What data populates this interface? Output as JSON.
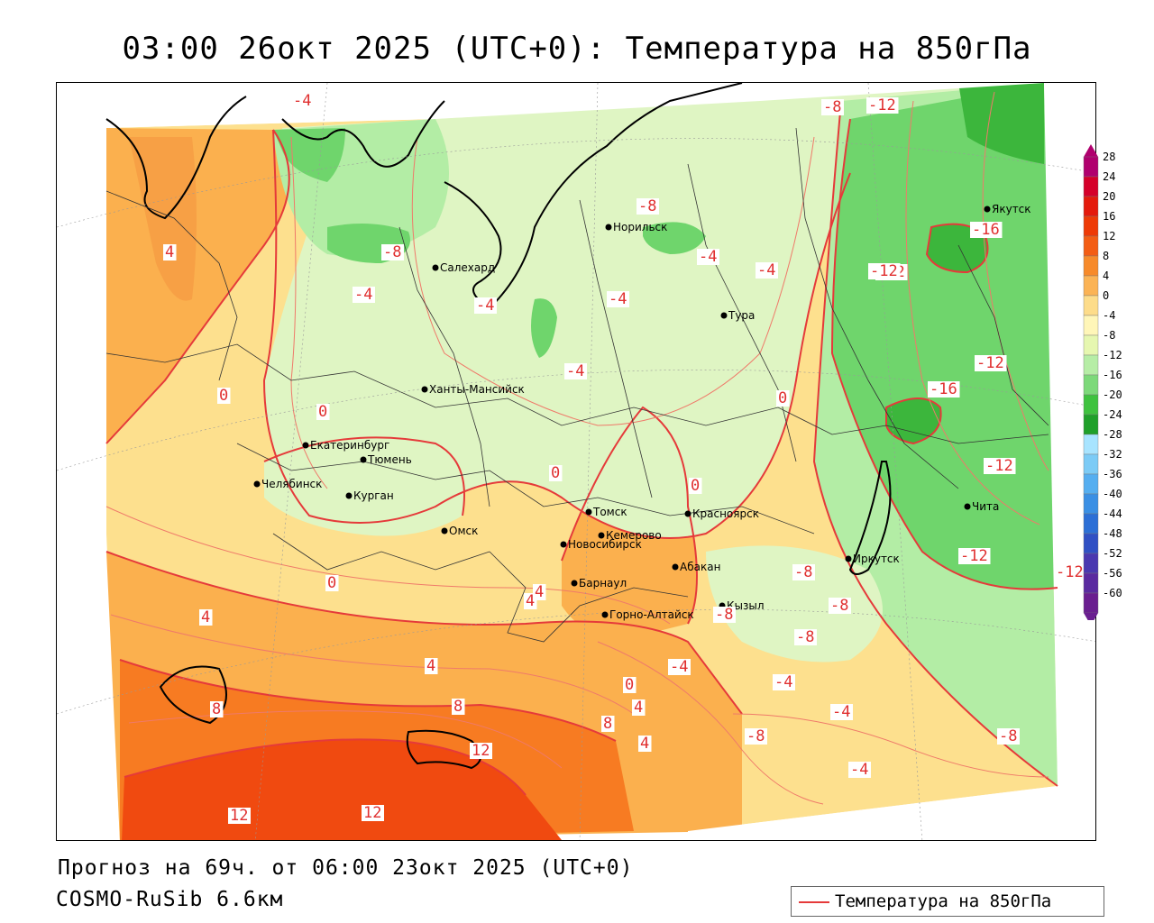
{
  "title": "03:00 26окт 2025 (UTC+0): Температура на 850гПа",
  "forecast_line": "Прогноз на 69ч. от 06:00 23окт 2025 (UTC+0)",
  "model_line": "COSMO-RuSib 6.6км",
  "legend": {
    "label": "Температура на 850гПа",
    "line_color": "#e53a3a"
  },
  "colorbar": {
    "ticks": [
      "28",
      "24",
      "20",
      "16",
      "12",
      "8",
      "4",
      "0",
      "-4",
      "-8",
      "-12",
      "-16",
      "-20",
      "-24",
      "-28",
      "-32",
      "-36",
      "-40",
      "-44",
      "-48",
      "-52",
      "-56",
      "-60"
    ],
    "colors": [
      "#b0006e",
      "#d5002a",
      "#e41a0c",
      "#ee3a06",
      "#f35d14",
      "#f78a2a",
      "#fbb355",
      "#fddc8a",
      "#fff6b8",
      "#e6f7b0",
      "#b6eda6",
      "#7dd97a",
      "#3fc23f",
      "#20a02a",
      "#a8e4ff",
      "#7ccbf6",
      "#55aef0",
      "#3a8fe4",
      "#2c6fd6",
      "#3050c4",
      "#4a38b0",
      "#5a2aa0",
      "#6a1e90"
    ]
  },
  "cities": [
    {
      "name": "Салехард"
    },
    {
      "name": "Норильск"
    },
    {
      "name": "Якутск"
    },
    {
      "name": "Тура"
    },
    {
      "name": "Ханты-Мансийск"
    },
    {
      "name": "Екатеринбург"
    },
    {
      "name": "Тюмень"
    },
    {
      "name": "Челябинск"
    },
    {
      "name": "Курган"
    },
    {
      "name": "Омск"
    },
    {
      "name": "Новосибирск"
    },
    {
      "name": "Томск"
    },
    {
      "name": "Кемерово"
    },
    {
      "name": "Красноярск"
    },
    {
      "name": "Барнаул"
    },
    {
      "name": "Абакан"
    },
    {
      "name": "Горно-Алтайск"
    },
    {
      "name": "Кызыл"
    },
    {
      "name": "Иркутск"
    },
    {
      "name": "Чита"
    }
  ],
  "isoline_labels": [
    "-16",
    "-12",
    "-12",
    "-8",
    "-8",
    "-8",
    "-4",
    "-4",
    "-4",
    "-4",
    "-4",
    "-4",
    "-4",
    "0",
    "0",
    "0",
    "0",
    "0",
    "0",
    "4",
    "4",
    "4",
    "4",
    "4",
    "8",
    "8",
    "8",
    "12",
    "12",
    "12",
    "-12",
    "-12",
    "-12",
    "-12",
    "-16",
    "-8",
    "-8",
    "-8",
    "-8",
    "-8",
    "-4",
    "-4",
    "-4",
    "-4",
    "0",
    "4",
    "4",
    "-8",
    "-12"
  ],
  "colors": {
    "warm_12": "#f04a10",
    "warm_8": "#f77b22",
    "warm_4": "#fbb04e",
    "warm_0": "#fde08e",
    "neutral": "#fff3bd",
    "cool_-4": "#dff5c3",
    "cool_-8": "#b3eda5",
    "cool_-12": "#6fd56c",
    "cool_-16": "#3cb63c",
    "isoline": "#e53a3a"
  }
}
